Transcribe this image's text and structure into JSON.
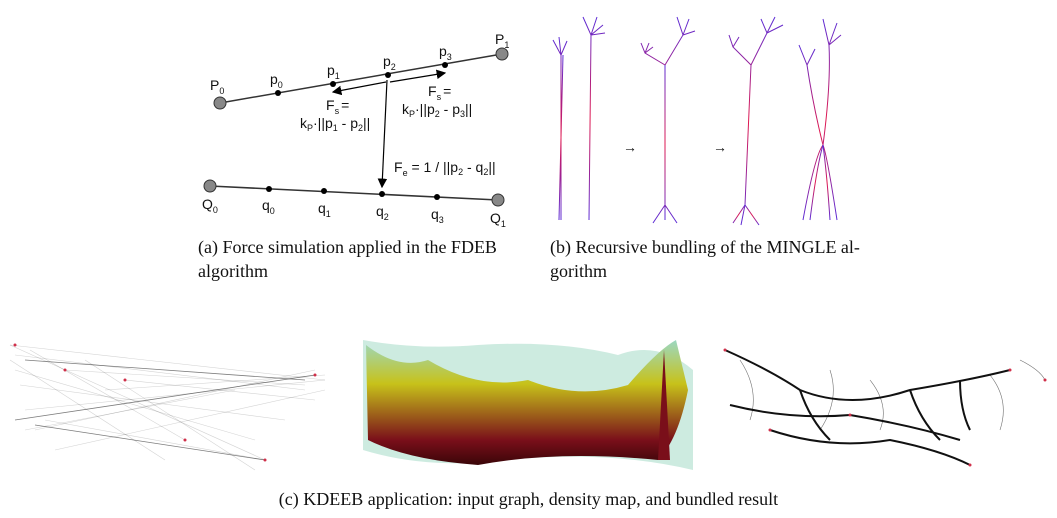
{
  "captions": {
    "a_line1": "(a) Force simulation applied in the FDEB",
    "a_line2": "algorithm",
    "b_line1": "(b) Recursive bundling of the MINGLE al-",
    "b_line2": "gorithm",
    "c": "(c) KDEEB application: input graph, density map, and bundled result"
  },
  "fdeb": {
    "P_label": "P",
    "Q_label": "Q",
    "p_label": "p",
    "q_label": "q",
    "P_start_sub": "0",
    "P_end_sub": "1",
    "Q_start_sub": "0",
    "Q_end_sub": "1",
    "p_subs": [
      "0",
      "1",
      "2",
      "3"
    ],
    "q_subs": [
      "0",
      "1",
      "2",
      "3"
    ],
    "fs_left_F": "F",
    "fs_left_sub": "s",
    "fs_left_eq": "=",
    "fs_left_formula": "k",
    "fs_left_formula_sub": "P",
    "fs_left_formula_rest": "·||p",
    "fs_left_formula_a": "1",
    "fs_left_formula_mid": " - p",
    "fs_left_formula_b": "2",
    "fs_left_formula_end": "||",
    "fs_right_F": "F",
    "fs_right_sub": "s",
    "fs_right_eq": "=",
    "fs_right_formula": "k",
    "fs_right_formula_sub": "P",
    "fs_right_formula_rest": "·||p",
    "fs_right_formula_a": "2",
    "fs_right_formula_mid": " - p",
    "fs_right_formula_b": "3",
    "fs_right_formula_end": "||",
    "fe_F": "F",
    "fe_sub": "e",
    "fe_formula": " = 1 / ||p",
    "fe_formula_a": "2",
    "fe_formula_mid": " - q",
    "fe_formula_b": "2",
    "fe_formula_end": "||"
  },
  "mingle": {
    "arrow_symbol": "→",
    "edge_color_start": "#e0174f",
    "edge_color_end": "#5b2bd6"
  },
  "kdeeb": {
    "graph_edge_color": "#111111",
    "node_color": "#d0304a",
    "density_colors": [
      "#7a0f1a",
      "#c7c21a",
      "#9bd8c2"
    ]
  }
}
